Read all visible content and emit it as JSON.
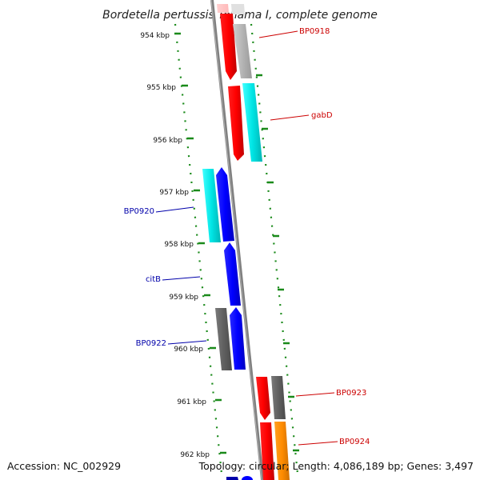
{
  "title": "Bordetella pertussis Tohama I, complete genome",
  "footer": {
    "accession": "Accession: NC_002929",
    "topology": "Topology: circular; Length: 4,086,189 bp; Genes: 3,497"
  },
  "colors": {
    "backbone": "#808080",
    "tick": "#1a8a1a",
    "label_forward": "#cc0000",
    "label_reverse": "#0000aa"
  },
  "ruler_ticks": [
    "954 kbp",
    "955 kbp",
    "956 kbp",
    "957 kbp",
    "958 kbp",
    "959 kbp",
    "960 kbp",
    "961 kbp",
    "962 kbp"
  ],
  "genes": [
    {
      "name": "BP0918",
      "strand": "+",
      "colors": [
        "#ff0000",
        "#b4b4b4"
      ]
    },
    {
      "name": "gabD",
      "strand": "+",
      "colors": [
        "#ff0000",
        "#00e5e5"
      ]
    },
    {
      "name": "BP0920",
      "strand": "-",
      "colors": [
        "#00e5e5",
        "#0000ff"
      ]
    },
    {
      "name": "citB",
      "strand": "-",
      "colors": [
        "#0000ff"
      ]
    },
    {
      "name": "BP0922",
      "strand": "-",
      "colors": [
        "#606060",
        "#0000ff"
      ]
    },
    {
      "name": "BP0923",
      "strand": "+",
      "colors": [
        "#ff0000",
        "#606060"
      ]
    },
    {
      "name": "BP0924",
      "strand": "+",
      "colors": [
        "#ff0000",
        "#ff8c00"
      ]
    }
  ]
}
